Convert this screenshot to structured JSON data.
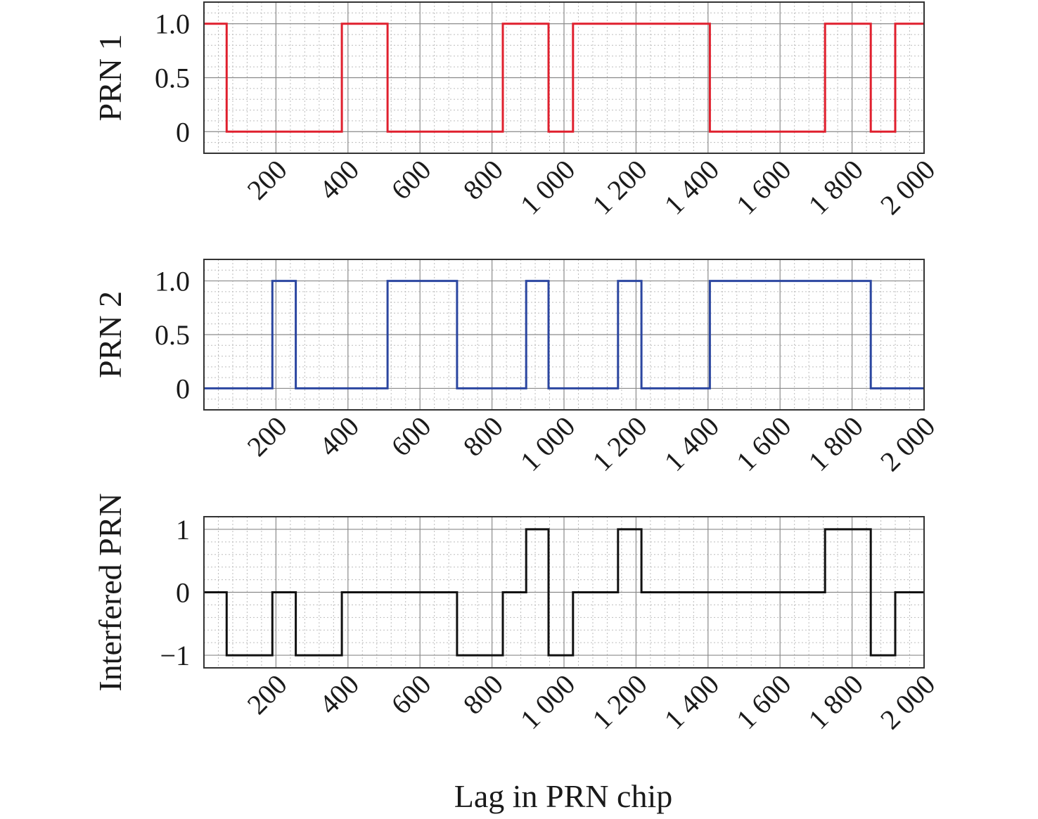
{
  "xlabel": "Lag in PRN chip",
  "chart_data": [
    {
      "type": "line",
      "step": true,
      "xlim": [
        0,
        2000
      ],
      "ylim": [
        -0.2,
        1.2
      ],
      "x_ticks": [
        200,
        400,
        600,
        800,
        1000,
        1200,
        1400,
        1600,
        1800,
        2000
      ],
      "x_tick_labels": [
        "200",
        "400",
        "600",
        "800",
        "1 000",
        "1 200",
        "1 400",
        "1 600",
        "1 800",
        "2 000"
      ],
      "y_ticks": [
        0,
        0.5,
        1.0
      ],
      "y_tick_labels": [
        "0",
        "0.5",
        "1.0"
      ],
      "ylabel": "PRN 1",
      "grid": true,
      "color": "#e0202e",
      "points": [
        [
          0,
          1
        ],
        [
          63,
          1
        ],
        [
          63,
          0
        ],
        [
          383,
          0
        ],
        [
          383,
          1
        ],
        [
          510,
          1
        ],
        [
          510,
          0
        ],
        [
          830,
          0
        ],
        [
          830,
          1
        ],
        [
          957,
          1
        ],
        [
          957,
          0
        ],
        [
          1025,
          0
        ],
        [
          1025,
          1
        ],
        [
          1405,
          1
        ],
        [
          1405,
          0
        ],
        [
          1725,
          0
        ],
        [
          1725,
          1
        ],
        [
          1852,
          1
        ],
        [
          1852,
          0
        ],
        [
          1920,
          0
        ],
        [
          1920,
          1
        ],
        [
          2000,
          1
        ]
      ]
    },
    {
      "type": "line",
      "step": true,
      "xlim": [
        0,
        2000
      ],
      "ylim": [
        -0.2,
        1.2
      ],
      "x_ticks": [
        200,
        400,
        600,
        800,
        1000,
        1200,
        1400,
        1600,
        1800,
        2000
      ],
      "x_tick_labels": [
        "200",
        "400",
        "600",
        "800",
        "1 000",
        "1 200",
        "1 400",
        "1 600",
        "1 800",
        "2 000"
      ],
      "y_ticks": [
        0,
        0.5,
        1.0
      ],
      "y_tick_labels": [
        "0",
        "0.5",
        "1.0"
      ],
      "ylabel": "PRN 2",
      "grid": true,
      "color": "#2b46a0",
      "points": [
        [
          0,
          0
        ],
        [
          190,
          0
        ],
        [
          190,
          1
        ],
        [
          255,
          1
        ],
        [
          255,
          0
        ],
        [
          510,
          0
        ],
        [
          510,
          1
        ],
        [
          703,
          1
        ],
        [
          703,
          0
        ],
        [
          895,
          0
        ],
        [
          895,
          1
        ],
        [
          957,
          1
        ],
        [
          957,
          0
        ],
        [
          1150,
          0
        ],
        [
          1150,
          1
        ],
        [
          1215,
          1
        ],
        [
          1215,
          0
        ],
        [
          1405,
          0
        ],
        [
          1405,
          1
        ],
        [
          1852,
          1
        ],
        [
          1852,
          0
        ],
        [
          2000,
          0
        ]
      ]
    },
    {
      "type": "line",
      "step": true,
      "xlim": [
        0,
        2000
      ],
      "ylim": [
        -1.2,
        1.2
      ],
      "x_ticks": [
        200,
        400,
        600,
        800,
        1000,
        1200,
        1400,
        1600,
        1800,
        2000
      ],
      "x_tick_labels": [
        "200",
        "400",
        "600",
        "800",
        "1 000",
        "1 200",
        "1 400",
        "1 600",
        "1 800",
        "2 000"
      ],
      "y_ticks": [
        -1,
        0,
        1
      ],
      "y_tick_labels": [
        "−1",
        "0",
        "1"
      ],
      "ylabel": "Interfered PRN",
      "grid": true,
      "color": "#111111",
      "points": [
        [
          0,
          0
        ],
        [
          63,
          0
        ],
        [
          63,
          -1
        ],
        [
          190,
          -1
        ],
        [
          190,
          0
        ],
        [
          255,
          0
        ],
        [
          255,
          -1
        ],
        [
          383,
          -1
        ],
        [
          383,
          0
        ],
        [
          703,
          0
        ],
        [
          703,
          -1
        ],
        [
          830,
          -1
        ],
        [
          830,
          0
        ],
        [
          895,
          0
        ],
        [
          895,
          1
        ],
        [
          957,
          1
        ],
        [
          957,
          -1
        ],
        [
          1025,
          -1
        ],
        [
          1025,
          0
        ],
        [
          1150,
          0
        ],
        [
          1150,
          1
        ],
        [
          1215,
          1
        ],
        [
          1215,
          0
        ],
        [
          1725,
          0
        ],
        [
          1725,
          1
        ],
        [
          1852,
          1
        ],
        [
          1852,
          -1
        ],
        [
          1920,
          -1
        ],
        [
          1920,
          0
        ],
        [
          2000,
          0
        ]
      ]
    }
  ]
}
